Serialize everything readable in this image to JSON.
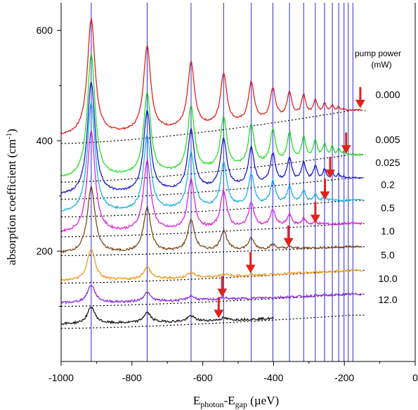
{
  "chart_data": {
    "type": "line",
    "xlabel_main": "E",
    "xlabel_sub1": "photon",
    "xlabel_mid": "-E",
    "xlabel_sub2": "gap",
    "xlabel_unit": " (µeV)",
    "ylabel_main": "absorption coefficient (cm",
    "ylabel_sup": "-1",
    "ylabel_end": ")",
    "xlim": [
      -1000,
      0
    ],
    "ylim": [
      0,
      650
    ],
    "xticks": [
      -1000,
      -800,
      -600,
      -400,
      -200,
      0
    ],
    "yticks": [
      200,
      400,
      600
    ],
    "legend_title_1": "pump power",
    "legend_title_2": "(mW)",
    "exciton_lines": [
      -915,
      -757,
      -633,
      -541,
      -463,
      -402,
      -355,
      -315,
      -282,
      -256,
      -234,
      -216,
      -201,
      -189,
      -176
    ],
    "series": [
      {
        "name": "0.000",
        "color": "#e0221e",
        "start": 408,
        "end": 455,
        "amps": [
          210,
          155,
          118,
          92,
          70,
          55,
          45,
          36,
          26,
          18,
          12,
          8,
          4
        ],
        "cutoff": -150,
        "arrow_x": -155,
        "noise": 1.5
      },
      {
        "name": "0.005",
        "color": "#22e022",
        "start": 330,
        "end": 374,
        "amps": [
          225,
          148,
          118,
          92,
          72,
          60,
          50,
          40,
          32,
          24,
          18,
          12,
          8
        ],
        "cutoff": -150,
        "arrow_x": -195,
        "noise": 1.5
      },
      {
        "name": "0.025",
        "color": "#1c1cc8",
        "start": 300,
        "end": 332,
        "amps": [
          205,
          148,
          108,
          88,
          68,
          54,
          44,
          34,
          26,
          18,
          12,
          8,
          4
        ],
        "cutoff": -150,
        "arrow_x": -240,
        "noise": 1.5
      },
      {
        "name": "0.2",
        "color": "#1ab4e8",
        "start": 268,
        "end": 292,
        "amps": [
          200,
          136,
          102,
          80,
          56,
          42,
          30,
          22,
          14,
          8,
          4,
          2,
          0
        ],
        "cutoff": -150,
        "arrow_x": -255,
        "noise": 1.8
      },
      {
        "name": "0.5",
        "color": "#e020e0",
        "start": 232,
        "end": 250,
        "amps": [
          185,
          128,
          90,
          68,
          44,
          30,
          20,
          12,
          6,
          2,
          0,
          0,
          0
        ],
        "cutoff": -150,
        "arrow_x": -282,
        "noise": 2
      },
      {
        "name": "1.0",
        "color": "#7a4a1c",
        "start": 196,
        "end": 208,
        "amps": [
          120,
          80,
          56,
          36,
          20,
          8,
          3,
          0,
          0,
          0,
          0,
          0,
          0
        ],
        "cutoff": -150,
        "arrow_x": -358,
        "noise": 2
      },
      {
        "name": "5.0",
        "color": "#f09a20",
        "start": 146,
        "end": 165,
        "amps": [
          58,
          22,
          10,
          5,
          0,
          0,
          0,
          0,
          0,
          0,
          0,
          0,
          0
        ],
        "cutoff": -150,
        "arrow_x": -465,
        "noise": 2
      },
      {
        "name": "10.0",
        "color": "#8a2be2",
        "start": 106,
        "end": 122,
        "amps": [
          32,
          16,
          8,
          3,
          0,
          0,
          0,
          0,
          0,
          0,
          0,
          0,
          0
        ],
        "cutoff": -150,
        "arrow_x": -545,
        "noise": 2
      },
      {
        "name": "12.0",
        "color": "#1a1a1a",
        "start": 68,
        "end": 84,
        "amps": [
          30,
          18,
          10,
          4,
          0,
          0,
          0,
          0,
          0,
          0,
          0,
          0,
          0
        ],
        "cutoff": -400,
        "arrow_x": -555,
        "noise": 2
      }
    ],
    "baselines": [
      {
        "start": 395,
        "end": 455
      },
      {
        "start": 325,
        "end": 375
      },
      {
        "start": 294,
        "end": 333
      },
      {
        "start": 262,
        "end": 292
      },
      {
        "start": 226,
        "end": 250
      },
      {
        "start": 192,
        "end": 208
      },
      {
        "start": 142,
        "end": 165
      },
      {
        "start": 100,
        "end": 122
      },
      {
        "start": 60,
        "end": 84
      }
    ]
  }
}
